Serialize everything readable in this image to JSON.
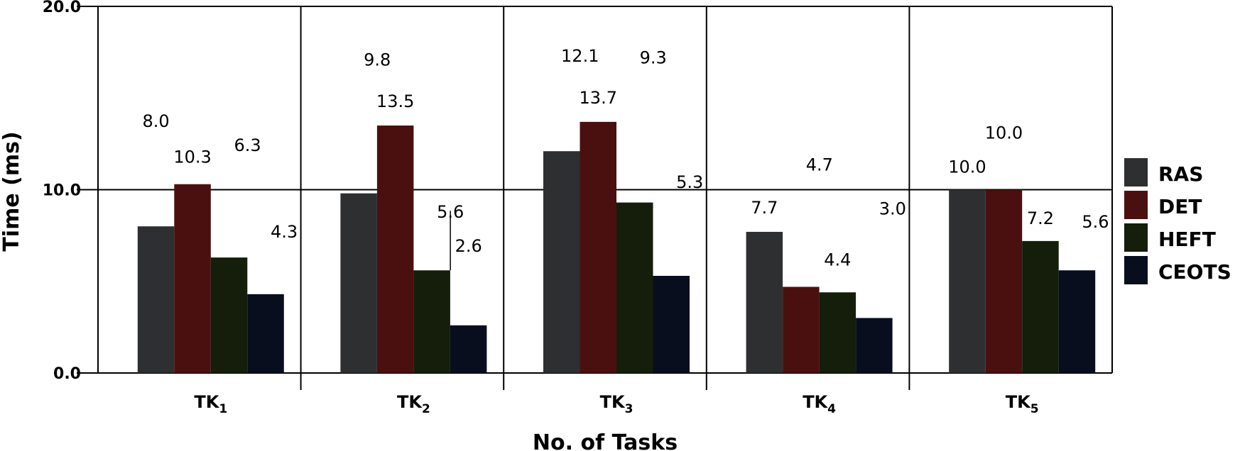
{
  "chart_data": {
    "type": "bar",
    "ylabel": "Time (ms)",
    "xlabel": "No. of Tasks",
    "ylim": [
      0,
      20
    ],
    "yticks": [
      "0.0",
      "10.0",
      "20.0"
    ],
    "categories": [
      {
        "base": "TK",
        "sub": "1"
      },
      {
        "base": "TK",
        "sub": "2"
      },
      {
        "base": "TK",
        "sub": "3"
      },
      {
        "base": "TK",
        "sub": "4"
      },
      {
        "base": "TK",
        "sub": "5"
      }
    ],
    "series": [
      {
        "name": "RAS",
        "color": "#2e2f31",
        "values": [
          8.0,
          9.8,
          12.1,
          7.7,
          10.0
        ]
      },
      {
        "name": "DET",
        "color": "#4a1010",
        "values": [
          10.3,
          13.5,
          13.7,
          4.7,
          10.0
        ]
      },
      {
        "name": "HEFT",
        "color": "#151d0b",
        "values": [
          6.3,
          5.6,
          9.3,
          4.4,
          7.2
        ]
      },
      {
        "name": "CEOTS",
        "color": "#080e1e",
        "values": [
          4.3,
          2.6,
          5.3,
          3.0,
          5.6
        ]
      }
    ],
    "legend_position": "right",
    "grid": true
  }
}
